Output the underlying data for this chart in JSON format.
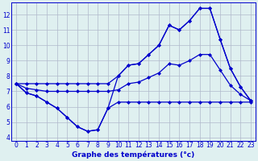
{
  "x": [
    0,
    1,
    2,
    3,
    4,
    5,
    6,
    7,
    8,
    9,
    10,
    11,
    12,
    13,
    14,
    15,
    16,
    17,
    18,
    19,
    20,
    21,
    22,
    23
  ],
  "temp_current": [
    7.5,
    6.9,
    6.7,
    6.3,
    5.9,
    5.3,
    4.7,
    4.4,
    4.5,
    5.9,
    8.0,
    8.7,
    8.8,
    9.4,
    10.0,
    11.3,
    11.0,
    11.6,
    12.4,
    12.4,
    10.4,
    8.5,
    7.3,
    6.4
  ],
  "temp_max": [
    7.5,
    7.5,
    7.5,
    7.5,
    7.5,
    7.5,
    7.5,
    7.5,
    7.5,
    7.5,
    8.0,
    8.7,
    8.8,
    9.4,
    10.0,
    11.3,
    11.0,
    11.6,
    12.4,
    12.4,
    10.4,
    8.5,
    7.3,
    6.4
  ],
  "temp_min": [
    7.5,
    6.9,
    6.7,
    6.3,
    5.9,
    5.3,
    4.7,
    4.4,
    4.5,
    5.9,
    6.3,
    6.3,
    6.3,
    6.3,
    6.3,
    6.3,
    6.3,
    6.3,
    6.3,
    6.3,
    6.3,
    6.3,
    6.3,
    6.3
  ],
  "temp_avg": [
    7.5,
    7.2,
    7.1,
    7.0,
    7.0,
    7.0,
    7.0,
    7.0,
    7.0,
    7.0,
    7.1,
    7.5,
    7.6,
    7.9,
    8.2,
    8.8,
    8.7,
    9.0,
    9.4,
    9.4,
    8.4,
    7.4,
    6.8,
    6.4
  ],
  "ylim": [
    3.8,
    12.8
  ],
  "xlim": [
    -0.5,
    23.5
  ],
  "yticks": [
    4,
    5,
    6,
    7,
    8,
    9,
    10,
    11,
    12
  ],
  "xticks": [
    0,
    1,
    2,
    3,
    4,
    5,
    6,
    7,
    8,
    9,
    10,
    11,
    12,
    13,
    14,
    15,
    16,
    17,
    18,
    19,
    20,
    21,
    22,
    23
  ],
  "line_color": "#0000cc",
  "bg_color": "#dff0f0",
  "grid_color": "#b0b8cc",
  "xlabel": "Graphe des températures (°c)",
  "xlabel_color": "#0000cc",
  "marker": "D",
  "marker_size": 2.0,
  "linewidth": 0.9,
  "tick_fontsize": 5.5,
  "xlabel_fontsize": 6.5
}
